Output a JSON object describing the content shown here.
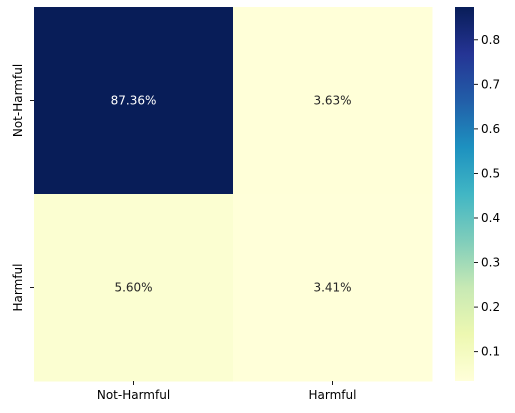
{
  "chart_data": {
    "type": "heatmap",
    "title": "",
    "xlabel": "",
    "ylabel": "",
    "x_categories": [
      "Not-Harmful",
      "Harmful"
    ],
    "y_categories": [
      "Not-Harmful",
      "Harmful"
    ],
    "values": [
      [
        0.8736,
        0.0363
      ],
      [
        0.056,
        0.0341
      ]
    ],
    "cell_labels": [
      [
        "87.36%",
        "3.63%"
      ],
      [
        "5.60%",
        "3.41%"
      ]
    ],
    "colorbar": {
      "colormap": "YlGnBu",
      "range": [
        0.0341,
        0.8736
      ],
      "ticks": [
        0.1,
        0.2,
        0.3,
        0.4,
        0.5,
        0.6,
        0.7,
        0.8
      ],
      "tick_labels": [
        "0.1",
        "0.2",
        "0.3",
        "0.4",
        "0.5",
        "0.6",
        "0.7",
        "0.8"
      ],
      "placement": "right"
    },
    "colors": {
      "low": "#ffffd9",
      "high": "#081d58",
      "text_light": "#ffffff",
      "text_dark": "#262626"
    }
  }
}
